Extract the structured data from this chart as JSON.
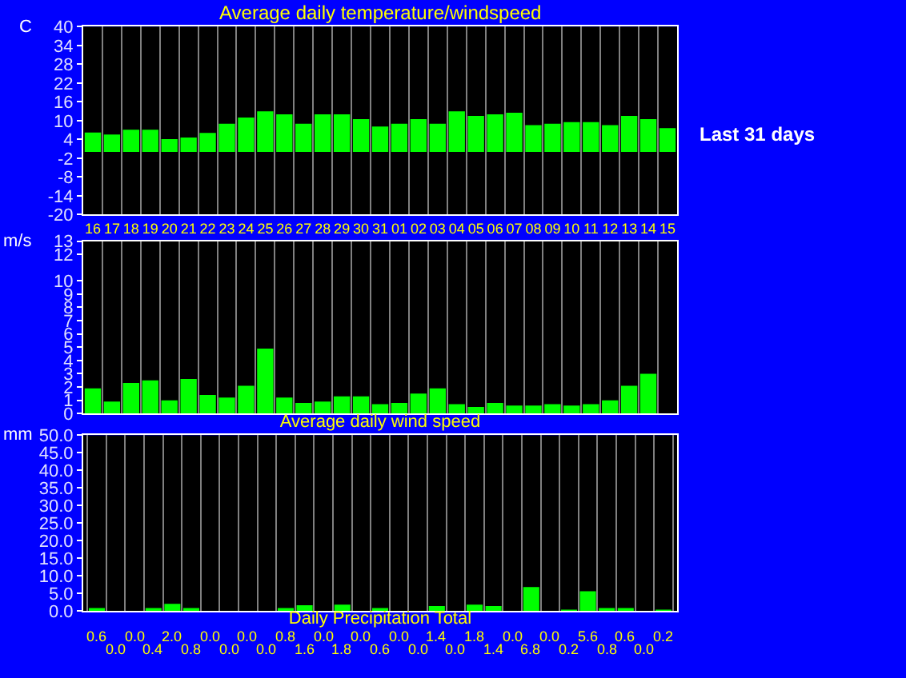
{
  "chart_data": [
    {
      "type": "bar",
      "title": "Average daily temperature/windspeed",
      "ylabel": "C",
      "categories": [
        "16",
        "17",
        "18",
        "19",
        "20",
        "21",
        "22",
        "23",
        "24",
        "25",
        "26",
        "27",
        "28",
        "29",
        "30",
        "31",
        "01",
        "02",
        "03",
        "04",
        "05",
        "06",
        "07",
        "08",
        "09",
        "10",
        "11",
        "12",
        "13",
        "14",
        "15"
      ],
      "series": [
        {
          "color": "#00ff00",
          "values": [
            6.2,
            5.6,
            7.1,
            7.1,
            4.1,
            4.6,
            6.1,
            9.0,
            11.0,
            13.0,
            12.0,
            9.0,
            12.0,
            12.0,
            10.5,
            8.1,
            9.0,
            10.5,
            9.0,
            13.0,
            11.5,
            12.0,
            12.5,
            8.6,
            9.0,
            9.5,
            9.5,
            8.6,
            11.5,
            10.5,
            7.6
          ]
        }
      ],
      "ylim": [
        -20,
        40
      ],
      "yticks": [
        -20,
        -14,
        -8,
        -2,
        4,
        10,
        16,
        22,
        28,
        34,
        40
      ],
      "grid": "x",
      "annotations": [
        "Last 31 days"
      ]
    },
    {
      "type": "bar",
      "xlabel": "Average daily wind speed",
      "ylabel": "m/s",
      "categories": [
        "16",
        "17",
        "18",
        "19",
        "20",
        "21",
        "22",
        "23",
        "24",
        "25",
        "26",
        "27",
        "28",
        "29",
        "30",
        "31",
        "01",
        "02",
        "03",
        "04",
        "05",
        "06",
        "07",
        "08",
        "09",
        "10",
        "11",
        "12",
        "13",
        "14",
        "15"
      ],
      "series": [
        {
          "color": "#00ff00",
          "values": [
            1.9,
            0.9,
            2.3,
            2.5,
            1.0,
            2.6,
            1.4,
            1.2,
            2.1,
            4.9,
            1.2,
            0.8,
            0.9,
            1.3,
            1.3,
            0.7,
            0.8,
            1.5,
            1.9,
            0.7,
            0.5,
            0.8,
            0.6,
            0.6,
            0.7,
            0.6,
            0.7,
            1.0,
            2.1,
            3.0,
            0
          ]
        }
      ],
      "ylim": [
        0,
        13
      ],
      "yticks": [
        0,
        1,
        2,
        3,
        4,
        5,
        6,
        7,
        8,
        9,
        10,
        12,
        13
      ],
      "grid": "x",
      "tick_labels": "y"
    },
    {
      "type": "bar",
      "xlabel": "Daily Precipitation Total",
      "ylabel": "mm",
      "categories": [
        null,
        null,
        null,
        null,
        null,
        null,
        null,
        null,
        null,
        null,
        null,
        null,
        null,
        null,
        null,
        null,
        null,
        null,
        null,
        null,
        null,
        null,
        null,
        null,
        null,
        null,
        null,
        null,
        null,
        null,
        null
      ],
      "series": [
        {
          "color": "#00ff00",
          "values": [
            0.6,
            0.0,
            0.0,
            0.4,
            2.0,
            0.8,
            0.0,
            0.0,
            0.0,
            0.0,
            0.8,
            1.6,
            0.0,
            1.8,
            0.0,
            0.6,
            0.0,
            0.0,
            1.4,
            0.0,
            1.8,
            1.4,
            0.0,
            6.8,
            0.0,
            0.2,
            5.6,
            0.8,
            0.6,
            0.0,
            0.2
          ],
          "value_labels": [
            "0.6",
            "0.0",
            "0.0",
            "0.4",
            "2.0",
            "0.8",
            "0.0",
            "0.0",
            "0.0",
            "0.0",
            "0.8",
            "1.6",
            "0.0",
            "1.8",
            "0.0",
            "0.6",
            "0.0",
            "0.0",
            "1.4",
            "0.0",
            "1.8",
            "1.4",
            "0.0",
            "6.8",
            "0.0",
            "0.2",
            "5.6",
            "0.8",
            "0.6",
            "0.0",
            "0.2"
          ]
        }
      ],
      "ylim": [
        0,
        50
      ],
      "yticks": [
        {
          "value": 0,
          "label": "0.0"
        },
        {
          "value": 5,
          "label": "5.0"
        },
        {
          "value": 10,
          "label": "10.0"
        },
        {
          "value": 15,
          "label": "15.0"
        },
        {
          "value": 20,
          "label": "20.0"
        },
        {
          "value": 25,
          "label": "25.0"
        },
        {
          "value": 30,
          "label": "30.0"
        },
        {
          "value": 35,
          "label": "35.0"
        },
        {
          "value": 40,
          "label": "40.0"
        },
        {
          "value": 45,
          "label": "45.0"
        },
        {
          "value": 50,
          "label": "50.0"
        }
      ],
      "grid": "x",
      "tick_labels": "y"
    }
  ]
}
